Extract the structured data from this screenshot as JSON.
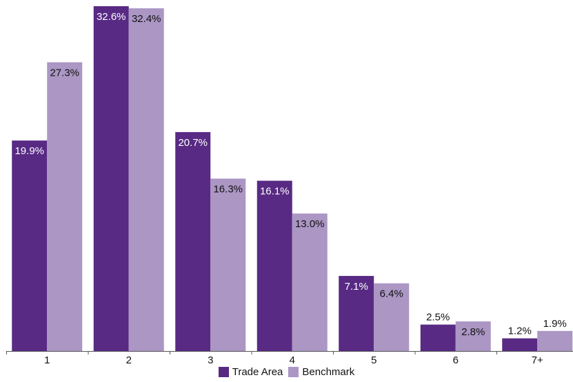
{
  "colors": {
    "trade_area": "#582a84",
    "benchmark": "#ab96c4",
    "axis": "#555555",
    "text": "#111111"
  },
  "legend": {
    "trade_area_label": "Trade Area",
    "benchmark_label": "Benchmark"
  },
  "chart_data": {
    "type": "bar",
    "categories": [
      "1",
      "2",
      "3",
      "4",
      "5",
      "6",
      "7+"
    ],
    "series": [
      {
        "name": "Trade Area",
        "values": [
          19.9,
          32.6,
          20.7,
          16.1,
          7.1,
          2.5,
          1.2
        ],
        "labels": [
          "19.9%",
          "32.6%",
          "20.7%",
          "16.1%",
          "7.1%",
          "2.5%",
          "1.2%"
        ]
      },
      {
        "name": "Benchmark",
        "values": [
          27.3,
          32.4,
          16.3,
          13.0,
          6.4,
          2.8,
          1.9
        ],
        "labels": [
          "27.3%",
          "32.4%",
          "16.3%",
          "13.0%",
          "6.4%",
          "2.8%",
          "1.9%"
        ]
      }
    ],
    "title": "",
    "xlabel": "",
    "ylabel": "",
    "ylim": [
      0,
      32.6
    ],
    "grid": false,
    "legend_position": "bottom"
  }
}
